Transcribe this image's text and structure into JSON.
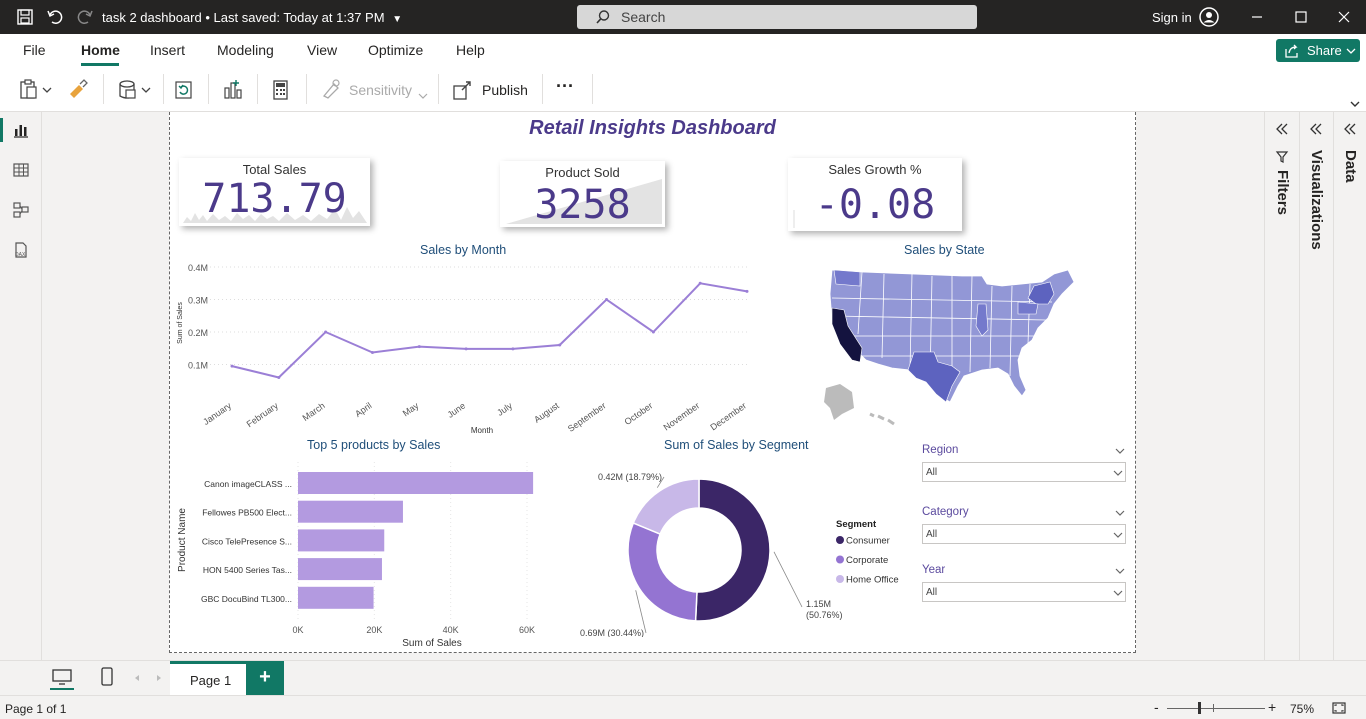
{
  "titlebar": {
    "doc_name": "task 2 dashboard",
    "saved": "• Last saved: Today at 1:37 PM",
    "search_placeholder": "Search",
    "sign_in": "Sign in"
  },
  "menu": {
    "items": [
      "File",
      "Home",
      "Insert",
      "Modeling",
      "View",
      "Optimize",
      "Help"
    ],
    "active": "Home",
    "share": "Share"
  },
  "toolbar": {
    "sensitivity": "Sensitivity",
    "publish": "Publish",
    "more": "···"
  },
  "panes": {
    "filters": "Filters",
    "visualizations": "Visualizations",
    "data": "Data"
  },
  "dashboard": {
    "title": "Retail Insights Dashboard",
    "cards": [
      {
        "label": "Total Sales",
        "value": "713.79"
      },
      {
        "label": "Product Sold",
        "value": "3258"
      },
      {
        "label": "Sales Growth %",
        "value": "-0.08"
      }
    ],
    "slicers": [
      {
        "label": "Region",
        "value": "All"
      },
      {
        "label": "Category",
        "value": "All"
      },
      {
        "label": "Year",
        "value": "All"
      }
    ],
    "map_title": "Sales by State"
  },
  "chart_data": [
    {
      "type": "line",
      "title": "Sales by Month",
      "xlabel": "Month",
      "ylabel": "Sum of Sales",
      "categories": [
        "January",
        "February",
        "March",
        "April",
        "May",
        "June",
        "July",
        "August",
        "September",
        "October",
        "November",
        "December"
      ],
      "values": [
        0.095,
        0.06,
        0.2,
        0.137,
        0.155,
        0.148,
        0.148,
        0.16,
        0.3,
        0.2,
        0.35,
        0.325
      ],
      "yticks": [
        "0.1M",
        "0.2M",
        "0.3M",
        "0.4M"
      ],
      "ylim": [
        0,
        0.4
      ],
      "color": "#9b7fd6"
    },
    {
      "type": "bar",
      "title": "Top 5 products by Sales",
      "xlabel": "Sum of Sales",
      "ylabel": "Product Name",
      "categories": [
        "Canon imageCLASS ...",
        "Fellowes PB500 Elect...",
        "Cisco TelePresence S...",
        "HON 5400 Series Tas...",
        "GBC DocuBind TL300..."
      ],
      "values": [
        61600,
        27500,
        22600,
        22000,
        19800
      ],
      "xticks": [
        "0K",
        "20K",
        "40K",
        "60K"
      ],
      "xlim": [
        0,
        60000
      ],
      "color": "#b39ae0"
    },
    {
      "type": "pie",
      "title": "Sum of Sales by Segment",
      "legend_title": "Segment",
      "labels": [
        "Consumer",
        "Corporate",
        "Home Office"
      ],
      "values": [
        50.76,
        30.44,
        18.79
      ],
      "data_labels": [
        "1.15M (50.76%)",
        "0.69M (30.44%)",
        "0.42M (18.79%)"
      ],
      "colors": [
        "#3b2667",
        "#9474d2",
        "#c8b8e8"
      ]
    }
  ],
  "bottom": {
    "page_tab": "Page 1",
    "add": "+",
    "status": "Page 1 of 1",
    "zoom": "75%"
  }
}
